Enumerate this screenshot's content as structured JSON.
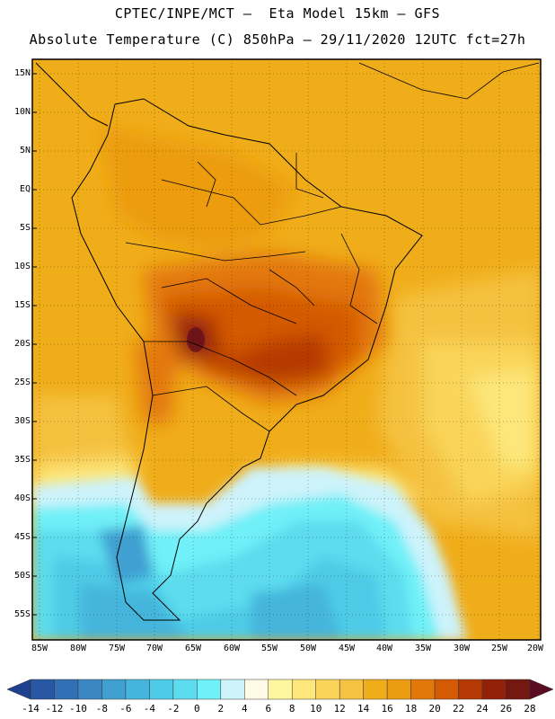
{
  "header": {
    "line1": "CPTEC/INPE/MCT –  Eta Model 15km – GFS",
    "line2": "Absolute Temperature (C) 850hPa – 29/11/2020 12UTC fct=27h"
  },
  "map": {
    "lat_labels": [
      "15N",
      "10N",
      "5N",
      "EQ",
      "5S",
      "10S",
      "15S",
      "20S",
      "25S",
      "30S",
      "35S",
      "40S",
      "45S",
      "50S",
      "55S"
    ],
    "lon_labels": [
      "85W",
      "80W",
      "75W",
      "70W",
      "65W",
      "60W",
      "55W",
      "50W",
      "45W",
      "40W",
      "35W",
      "30W",
      "25W",
      "20W"
    ]
  },
  "colorbar": {
    "labels": [
      "-14",
      "-12",
      "-10",
      "-8",
      "-6",
      "-4",
      "-2",
      "0",
      "2",
      "4",
      "6",
      "8",
      "10",
      "12",
      "14",
      "16",
      "18",
      "20",
      "22",
      "24",
      "26",
      "28"
    ],
    "colors": [
      "#1f3f8f",
      "#2a57a3",
      "#3270b5",
      "#3a87c4",
      "#40a0d2",
      "#44b5dc",
      "#4ecbe6",
      "#5cdcee",
      "#70f0f8",
      "#cdf3fb",
      "#fffbe6",
      "#fff79e",
      "#fde77a",
      "#f9d459",
      "#f5c241",
      "#f0ad1a",
      "#ec9c10",
      "#e3780a",
      "#d45a06",
      "#b63a05",
      "#93210a",
      "#741812",
      "#5c0c20"
    ]
  }
}
